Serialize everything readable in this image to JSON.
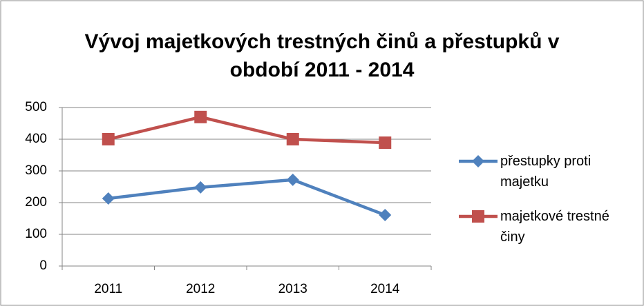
{
  "chart_data": {
    "type": "line",
    "title": "Vývoj majetkových trestných činů a přestupků v období 2011 - 2014",
    "categories": [
      "2011",
      "2012",
      "2013",
      "2014"
    ],
    "series": [
      {
        "name": "přestupky proti majetku",
        "color": "#4f81bd",
        "values": [
          213,
          248,
          272,
          161
        ]
      },
      {
        "name": "majetkové trestné činy",
        "color": "#c0504d",
        "values": [
          400,
          470,
          400,
          389
        ]
      }
    ],
    "ylim": [
      0,
      500
    ],
    "yticks": [
      0,
      100,
      200,
      300,
      400,
      500
    ],
    "grid": true,
    "legend": "right"
  }
}
